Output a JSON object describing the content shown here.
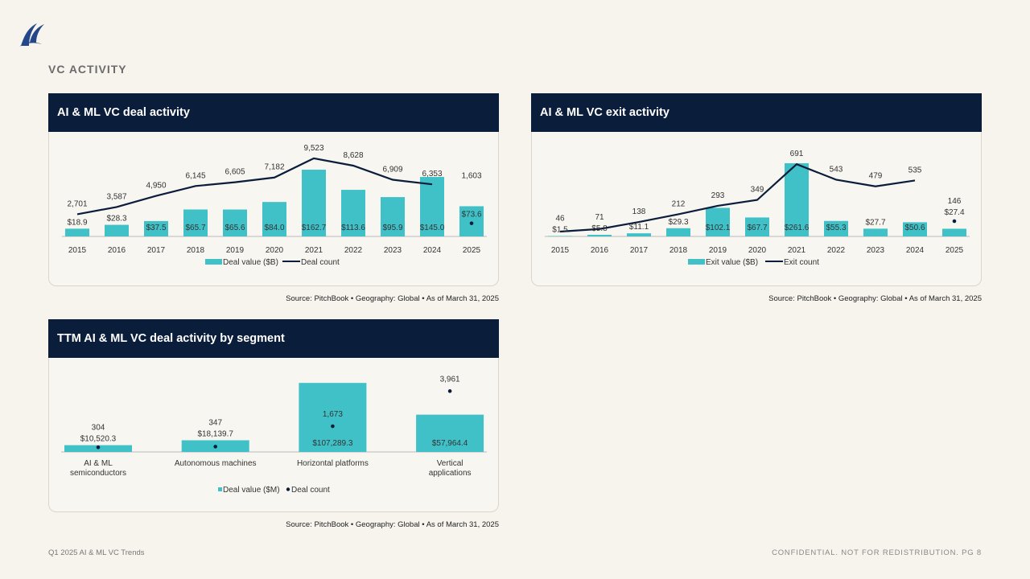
{
  "page": {
    "section_title": "VC ACTIVITY",
    "footer_left": "Q1 2025 AI & ML VC Trends",
    "footer_right": "CONFIDENTIAL. NOT FOR REDISTRIBUTION.  PG 8",
    "logo": "sail-logo"
  },
  "colors": {
    "bar": "#40c1c8",
    "line": "#0a1d3b",
    "header": "#0a1d3b",
    "background": "#f7f4ee"
  },
  "panels": [
    {
      "title": "AI & ML VC deal activity",
      "source": "Source: PitchBook  •  Geography: Global  •  As of March 31, 2025"
    },
    {
      "title": "AI & ML VC exit activity",
      "source": "Source: PitchBook  •  Geography: Global  •  As of March 31, 2025"
    },
    {
      "title": "TTM AI & ML VC deal activity by segment",
      "source": "Source: PitchBook  •  Geography: Global  •  As of March 31, 2025"
    }
  ],
  "chart_data": [
    {
      "type": "bar+line",
      "categories": [
        "2015",
        "2016",
        "2017",
        "2018",
        "2019",
        "2020",
        "2021",
        "2022",
        "2023",
        "2024",
        "2025"
      ],
      "series": [
        {
          "name": "Deal value ($B)",
          "kind": "bar",
          "values": [
            18.9,
            28.3,
            37.5,
            65.7,
            65.6,
            84.0,
            162.7,
            113.6,
            95.9,
            145.0,
            73.6
          ],
          "labels": [
            "$18.9",
            "$28.3",
            "$37.5",
            "$65.7",
            "$65.6",
            "$84.0",
            "$162.7",
            "$113.6",
            "$95.9",
            "$145.0",
            "$73.6"
          ]
        },
        {
          "name": "Deal count",
          "kind": "line",
          "values": [
            2701,
            3587,
            4950,
            6145,
            6605,
            7182,
            9523,
            8628,
            6909,
            6353,
            1603
          ],
          "labels": [
            "2,701",
            "3,587",
            "4,950",
            "6,145",
            "6,605",
            "7,182",
            "9,523",
            "8,628",
            "6,909",
            "6,353",
            "1,603"
          ],
          "line_until_index": 9,
          "last_point_marker": "dot"
        }
      ],
      "legend_position": "bottom",
      "grid": false
    },
    {
      "type": "bar+line",
      "categories": [
        "2015",
        "2016",
        "2017",
        "2018",
        "2019",
        "2020",
        "2021",
        "2022",
        "2023",
        "2024",
        "2025"
      ],
      "series": [
        {
          "name": "Exit value ($B)",
          "kind": "bar",
          "values": [
            1.5,
            5.8,
            11.1,
            29.3,
            102.1,
            67.7,
            261.6,
            55.3,
            27.7,
            50.6,
            27.4
          ],
          "labels": [
            "$1.5",
            "$5.8",
            "$11.1",
            "$29.3",
            "$102.1",
            "$67.7",
            "$261.6",
            "$55.3",
            "$27.7",
            "$50.6",
            "$27.4"
          ]
        },
        {
          "name": "Exit count",
          "kind": "line",
          "values": [
            46,
            71,
            138,
            212,
            293,
            349,
            691,
            543,
            479,
            535,
            146
          ],
          "labels": [
            "46",
            "71",
            "138",
            "212",
            "293",
            "349",
            "691",
            "543",
            "479",
            "535",
            "146"
          ],
          "line_until_index": 9,
          "last_point_marker": "dot"
        }
      ],
      "legend_position": "bottom",
      "grid": false
    },
    {
      "type": "bar+dot",
      "categories": [
        "AI & ML semiconductors",
        "Autonomous machines",
        "Horizontal platforms",
        "Vertical applications"
      ],
      "category_lines": [
        [
          "AI & ML",
          "semiconductors"
        ],
        [
          "Autonomous machines"
        ],
        [
          "Horizontal platforms"
        ],
        [
          "Vertical",
          "applications"
        ]
      ],
      "series": [
        {
          "name": "Deal value ($M)",
          "kind": "bar",
          "values": [
            10520.3,
            18139.7,
            107289.3,
            57964.4
          ],
          "labels": [
            "$10,520.3",
            "$18,139.7",
            "$107,289.3",
            "$57,964.4"
          ]
        },
        {
          "name": "Deal count",
          "kind": "dot",
          "values": [
            304,
            347,
            1673,
            3961
          ],
          "labels": [
            "304",
            "347",
            "1,673",
            "3,961"
          ]
        }
      ],
      "legend_position": "bottom",
      "grid": false
    }
  ]
}
